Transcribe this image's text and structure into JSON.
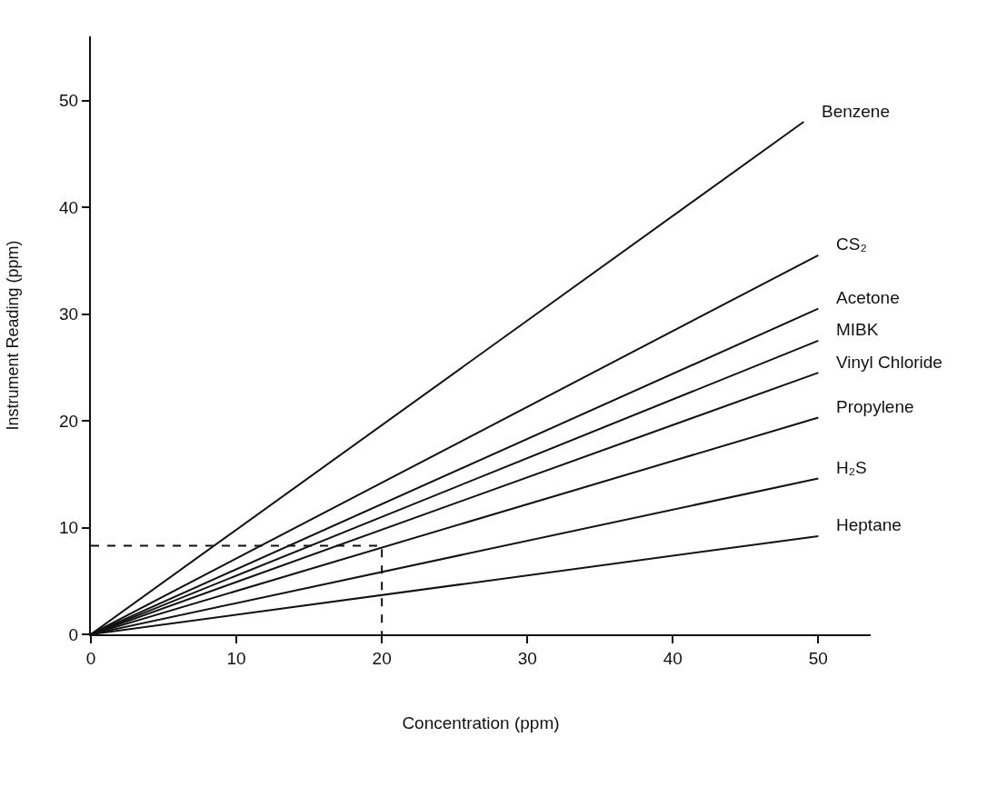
{
  "chart_data": {
    "type": "line",
    "xlabel": "Concentration (ppm)",
    "ylabel": "Instrument Reading (ppm)",
    "xlim": [
      0,
      53.6
    ],
    "ylim": [
      0,
      56
    ],
    "xticks": [
      0,
      10,
      20,
      30,
      40,
      50
    ],
    "yticks": [
      0,
      10,
      20,
      30,
      40,
      50
    ],
    "legend": false,
    "marker": "none",
    "series": [
      {
        "name": "Benzene",
        "color": "#111111",
        "x": [
          0,
          49
        ],
        "values": [
          0,
          48
        ]
      },
      {
        "name": "CS₂",
        "color": "#111111",
        "x": [
          0,
          50
        ],
        "values": [
          0,
          35.5
        ]
      },
      {
        "name": "Acetone",
        "color": "#111111",
        "x": [
          0,
          50
        ],
        "values": [
          0,
          30.5
        ]
      },
      {
        "name": "MIBK",
        "color": "#111111",
        "x": [
          0,
          50
        ],
        "values": [
          0,
          27.5
        ]
      },
      {
        "name": "Vinyl Chloride",
        "color": "#111111",
        "x": [
          0,
          50
        ],
        "values": [
          0,
          24.5
        ]
      },
      {
        "name": "Propylene",
        "color": "#111111",
        "x": [
          0,
          50
        ],
        "values": [
          0,
          20.3
        ]
      },
      {
        "name": "H₂S",
        "color": "#111111",
        "x": [
          0,
          50
        ],
        "values": [
          0,
          14.6
        ]
      },
      {
        "name": "Heptane",
        "color": "#111111",
        "x": [
          0,
          50
        ],
        "values": [
          0,
          9.2
        ]
      },
      {
        "color": "#111111",
        "line_style": "dashed",
        "x": [
          0,
          20,
          20
        ],
        "values": [
          8.3,
          8.3,
          0
        ]
      }
    ]
  }
}
